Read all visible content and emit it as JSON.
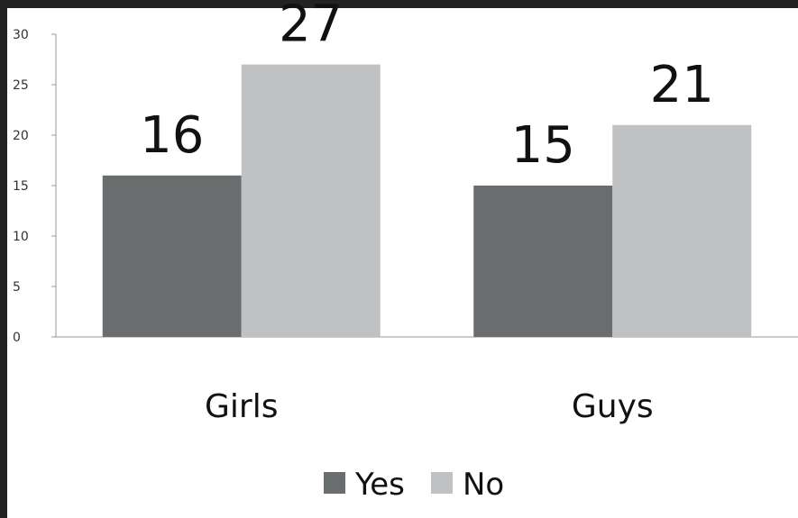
{
  "chart_data": {
    "type": "bar",
    "categories": [
      "Girls",
      "Guys"
    ],
    "series": [
      {
        "name": "Yes",
        "values": [
          16,
          15
        ],
        "color": "#696d6e"
      },
      {
        "name": "No",
        "values": [
          27,
          21
        ],
        "color": "#c0c1c2"
      }
    ],
    "ylim": [
      0,
      30
    ],
    "yticks": [
      0,
      5,
      10,
      15,
      20,
      25,
      30
    ],
    "grid": false,
    "legend": "bottom",
    "data_labels": true
  }
}
